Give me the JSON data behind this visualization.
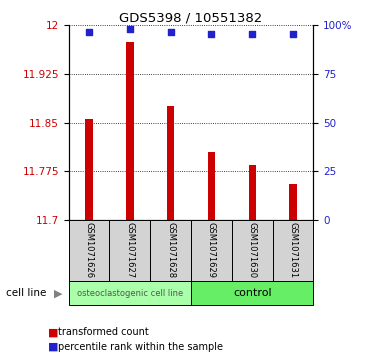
{
  "title": "GDS5398 / 10551382",
  "samples": [
    "GSM1071626",
    "GSM1071627",
    "GSM1071628",
    "GSM1071629",
    "GSM1071630",
    "GSM1071631"
  ],
  "bar_values": [
    11.855,
    11.975,
    11.875,
    11.805,
    11.785,
    11.755
  ],
  "percentile_values": [
    96.5,
    98.0,
    96.5,
    95.5,
    95.5,
    95.5
  ],
  "ylim_left": [
    11.7,
    12.0
  ],
  "ylim_right": [
    0,
    100
  ],
  "yticks_left": [
    11.7,
    11.775,
    11.85,
    11.925,
    12.0
  ],
  "ytick_labels_left": [
    "11.7",
    "11.775",
    "11.85",
    "11.925",
    "12"
  ],
  "yticks_right": [
    0,
    25,
    50,
    75,
    100
  ],
  "ytick_labels_right": [
    "0",
    "25",
    "50",
    "75",
    "100%"
  ],
  "group_labels": [
    "osteoclastogenic cell line",
    "control"
  ],
  "bar_color": "#cc0000",
  "dot_color": "#2222cc",
  "group_color": "#90ee90",
  "sample_bg_color": "#d3d3d3",
  "legend_bar_label": "transformed count",
  "legend_dot_label": "percentile rank within the sample",
  "cell_line_label": "cell line",
  "bar_width": 0.18
}
